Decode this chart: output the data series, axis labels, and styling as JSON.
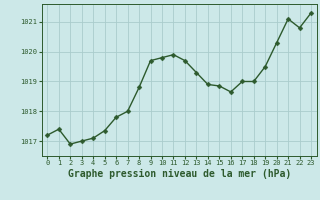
{
  "x": [
    0,
    1,
    2,
    3,
    4,
    5,
    6,
    7,
    8,
    9,
    10,
    11,
    12,
    13,
    14,
    15,
    16,
    17,
    18,
    19,
    20,
    21,
    22,
    23
  ],
  "y": [
    1017.2,
    1017.4,
    1016.9,
    1017.0,
    1017.1,
    1017.35,
    1017.8,
    1018.0,
    1018.8,
    1019.7,
    1019.8,
    1019.9,
    1019.7,
    1019.3,
    1018.9,
    1018.85,
    1018.65,
    1019.0,
    1019.0,
    1019.5,
    1020.3,
    1021.1,
    1020.8,
    1021.3
  ],
  "line_color": "#2d5a2d",
  "marker_color": "#2d5a2d",
  "bg_color": "#cce8e8",
  "grid_color": "#aacccc",
  "xlabel": "Graphe pression niveau de la mer (hPa)",
  "xlabel_fontsize": 7,
  "ylim": [
    1016.5,
    1021.6
  ],
  "yticks": [
    1017,
    1018,
    1019,
    1020,
    1021
  ],
  "xticks": [
    0,
    1,
    2,
    3,
    4,
    5,
    6,
    7,
    8,
    9,
    10,
    11,
    12,
    13,
    14,
    15,
    16,
    17,
    18,
    19,
    20,
    21,
    22,
    23
  ],
  "tick_fontsize": 5.0,
  "marker_size": 2.5,
  "line_width": 1.0
}
